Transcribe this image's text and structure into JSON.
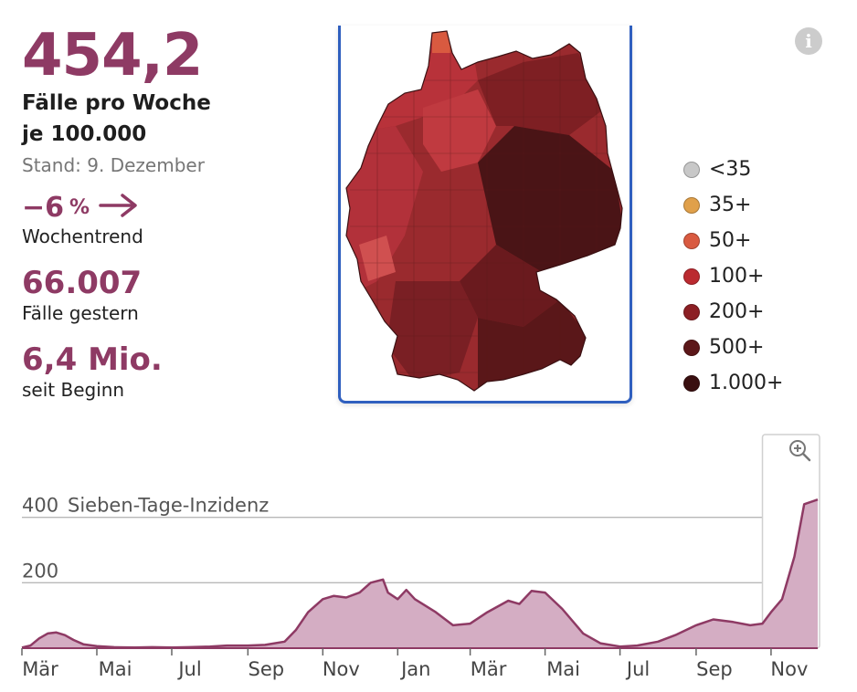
{
  "stats": {
    "incidence_value": "454,2",
    "incidence_label_1": "Fälle pro Woche",
    "incidence_label_2": "je 100.000",
    "stand": "Stand: 9. Dezember",
    "trend_value": "−6",
    "trend_unit": "%",
    "trend_label": "Wochentrend",
    "cases_yesterday_value": "66.007",
    "cases_yesterday_label": "Fälle gestern",
    "total_value": "6,4 Mio.",
    "total_label": "seit Beginn"
  },
  "map": {
    "legend": [
      {
        "label": "<35",
        "color": "#c8c8c8"
      },
      {
        "label": "35+",
        "color": "#e0a04a"
      },
      {
        "label": "50+",
        "color": "#d95a40"
      },
      {
        "label": "100+",
        "color": "#bb2a30"
      },
      {
        "label": "200+",
        "color": "#8c1f24"
      },
      {
        "label": "500+",
        "color": "#5c1719"
      },
      {
        "label": "1.000+",
        "color": "#3a0f10"
      }
    ]
  },
  "colors": {
    "accent": "#8e3a64",
    "area_fill": "#d4adc3",
    "line": "#8e3a64",
    "map_border": "#2f5fbf"
  },
  "icons": {
    "info": "info-icon",
    "zoom": "zoom-in-icon",
    "trend": "arrow-right-icon"
  },
  "chart_data": {
    "type": "area",
    "ylabel": "Sieben-Tage-Inzidenz",
    "yticks": [
      200,
      400
    ],
    "ylim": [
      0,
      480
    ],
    "grid": true,
    "x": [
      "2020-03-01",
      "2020-03-08",
      "2020-03-15",
      "2020-03-22",
      "2020-03-29",
      "2020-04-05",
      "2020-04-12",
      "2020-04-20",
      "2020-05-01",
      "2020-05-15",
      "2020-06-01",
      "2020-06-15",
      "2020-07-01",
      "2020-07-15",
      "2020-08-01",
      "2020-08-15",
      "2020-09-01",
      "2020-09-15",
      "2020-10-01",
      "2020-10-10",
      "2020-10-20",
      "2020-11-01",
      "2020-11-10",
      "2020-11-20",
      "2020-12-01",
      "2020-12-10",
      "2020-12-20",
      "2020-12-24",
      "2021-01-01",
      "2021-01-08",
      "2021-01-15",
      "2021-02-01",
      "2021-02-15",
      "2021-03-01",
      "2021-03-15",
      "2021-04-01",
      "2021-04-10",
      "2021-04-20",
      "2021-05-01",
      "2021-05-15",
      "2021-06-01",
      "2021-06-15",
      "2021-07-01",
      "2021-07-15",
      "2021-08-01",
      "2021-08-15",
      "2021-09-01",
      "2021-09-15",
      "2021-10-01",
      "2021-10-15",
      "2021-10-25",
      "2021-11-01",
      "2021-11-10",
      "2021-11-20",
      "2021-11-28",
      "2021-12-09"
    ],
    "values": [
      2,
      8,
      30,
      45,
      48,
      40,
      25,
      12,
      6,
      3,
      2,
      3,
      2,
      3,
      5,
      8,
      8,
      10,
      20,
      55,
      110,
      150,
      160,
      155,
      170,
      200,
      210,
      170,
      150,
      178,
      150,
      110,
      70,
      75,
      110,
      145,
      135,
      175,
      170,
      120,
      45,
      15,
      5,
      8,
      20,
      40,
      70,
      88,
      80,
      70,
      75,
      110,
      150,
      280,
      440,
      454.2
    ],
    "xtick_labels": [
      "Mär",
      "Mai",
      "Jul",
      "Sep",
      "Nov",
      "Jan",
      "Mär",
      "Mai",
      "Jul",
      "Sep",
      "Nov"
    ],
    "xtick_dates": [
      "2020-03-01",
      "2020-05-01",
      "2020-07-01",
      "2020-09-01",
      "2020-11-01",
      "2021-01-01",
      "2021-03-01",
      "2021-05-01",
      "2021-07-01",
      "2021-09-01",
      "2021-11-01"
    ],
    "highlight_range": [
      "2021-10-25",
      "2021-12-09"
    ]
  }
}
